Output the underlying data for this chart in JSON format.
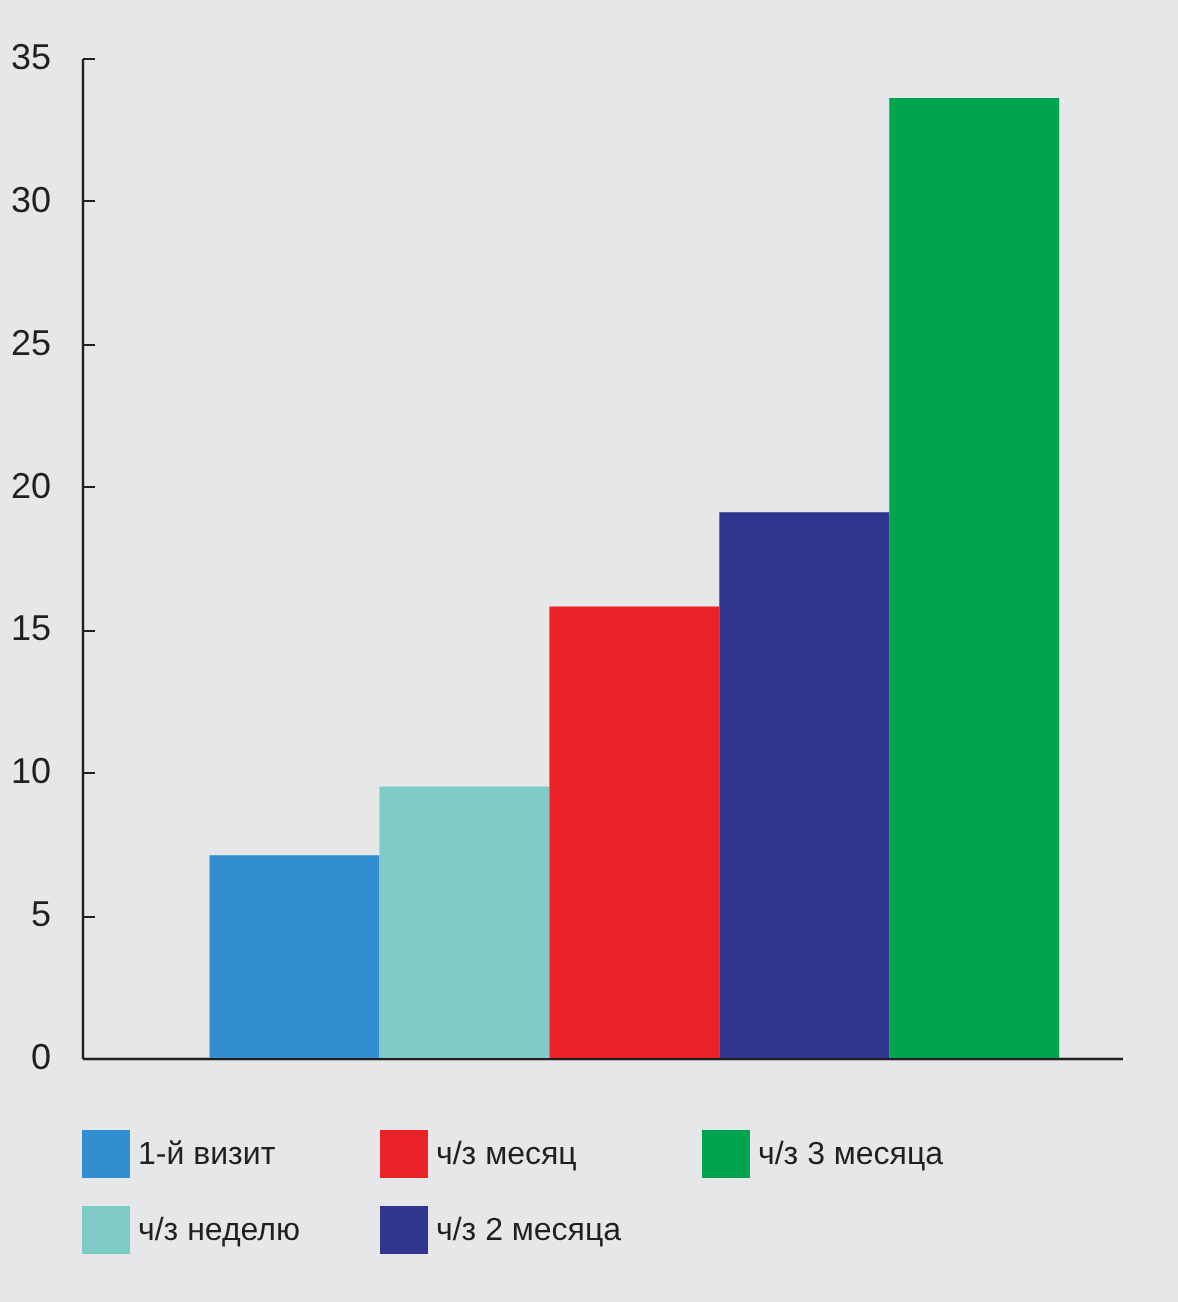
{
  "chart_data": {
    "type": "bar",
    "categories": [
      null
    ],
    "series": [
      {
        "name": "1-й визит",
        "color": "#318ecf",
        "values": [
          7.1
        ]
      },
      {
        "name": "ч/з неделю",
        "color": "#7ecbc7",
        "values": [
          9.5
        ]
      },
      {
        "name": "ч/з месяц",
        "color": "#ec2128",
        "values": [
          15.8
        ]
      },
      {
        "name": "ч/з 2 месяца",
        "color": "#2f358e",
        "values": [
          19.1
        ]
      },
      {
        "name": "ч/з 3 месяца",
        "color": "#00a44f",
        "values": [
          33.6
        ]
      }
    ],
    "ylim": [
      0,
      35
    ],
    "yticks": [
      0,
      5,
      10,
      15,
      20,
      25,
      30,
      35
    ],
    "grid": false,
    "legend": "bottom",
    "tick_labels": "y"
  }
}
